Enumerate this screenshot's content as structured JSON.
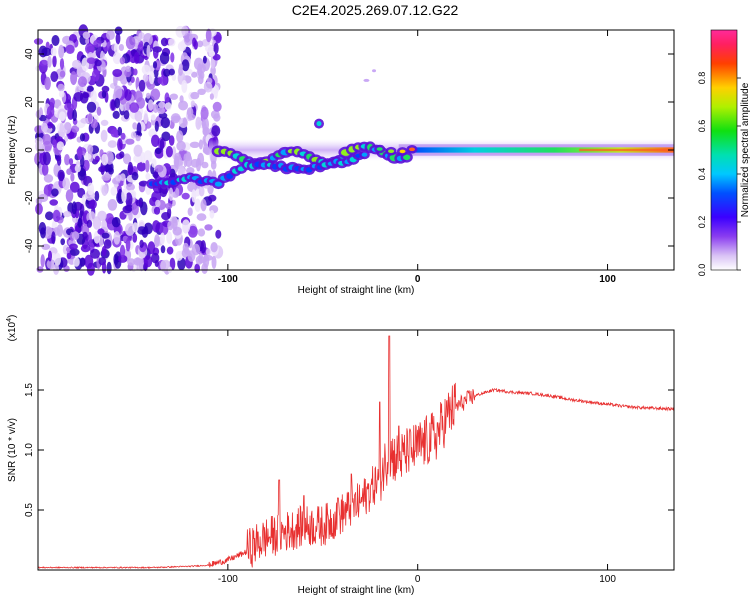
{
  "title": "C2E4.2025.269.07.12.G22",
  "chart_data": [
    {
      "type": "heatmap",
      "xlabel": "Height of straight line (km)",
      "ylabel": "Frequency (Hz)",
      "xlim": [
        -200,
        135
      ],
      "ylim": [
        -50,
        50
      ],
      "xticks": [
        -100,
        0,
        100
      ],
      "yticks": [
        -40,
        -20,
        0,
        20,
        40
      ],
      "xtick_labels": [
        "-100",
        "0",
        "100"
      ],
      "ytick_labels": [
        "-40",
        "-20",
        "0",
        "20",
        "40"
      ],
      "colorbar": {
        "label": "Normalized spectral amplitude",
        "range": [
          0,
          1
        ],
        "ticks": [
          0.0,
          0.2,
          0.4,
          0.6,
          0.8
        ],
        "tick_labels": [
          "0.0",
          "0.2",
          "0.4",
          "0.6",
          "0.8"
        ]
      },
      "features": {
        "noise_region_x": [
          -200,
          -105
        ],
        "main_trace_y": 0,
        "lower_branch": [
          [
            -140,
            -14
          ],
          [
            -120,
            -12
          ],
          [
            -105,
            -14
          ],
          [
            -90,
            -6
          ],
          [
            -60,
            -8
          ],
          [
            -40,
            -5
          ],
          [
            -25,
            -1
          ]
        ]
      }
    },
    {
      "type": "line",
      "xlabel": "Height of straight line (km)",
      "ylabel": "SNR (10 * v/v)",
      "scale_label": "(x10",
      "scale_exp": "4",
      "scale_close": ")",
      "xlim": [
        -200,
        135
      ],
      "ylim": [
        0,
        2.0
      ],
      "xticks": [
        -100,
        0,
        100
      ],
      "yticks": [
        0.5,
        1.0,
        1.5
      ],
      "xtick_labels": [
        "-100",
        "0",
        "100"
      ],
      "ytick_labels": [
        "0.5",
        "1.0",
        "1.5"
      ],
      "series": [
        {
          "name": "SNR",
          "color": "#e83030",
          "x": [
            -200,
            -180,
            -160,
            -140,
            -120,
            -110,
            -100,
            -90,
            -80,
            -70,
            -60,
            -50,
            -40,
            -30,
            -20,
            -15,
            -10,
            -5,
            0,
            5,
            10,
            15,
            20,
            30,
            40,
            50,
            60,
            70,
            80,
            90,
            100,
            110,
            120,
            135
          ],
          "y": [
            0.02,
            0.02,
            0.02,
            0.02,
            0.03,
            0.04,
            0.08,
            0.15,
            0.25,
            0.3,
            0.35,
            0.35,
            0.45,
            0.55,
            0.75,
            0.95,
            0.9,
            0.95,
            1.0,
            1.05,
            1.1,
            1.25,
            1.35,
            1.45,
            1.5,
            1.48,
            1.47,
            1.45,
            1.42,
            1.4,
            1.38,
            1.36,
            1.35,
            1.34
          ]
        }
      ],
      "spikes": [
        [
          -73,
          0.75
        ],
        [
          -60,
          0.62
        ],
        [
          -15,
          1.95
        ],
        [
          -20,
          1.4
        ],
        [
          -10,
          1.2
        ],
        [
          -5,
          0.95
        ],
        [
          -35,
          0.8
        ],
        [
          -42,
          0.6
        ]
      ]
    }
  ]
}
